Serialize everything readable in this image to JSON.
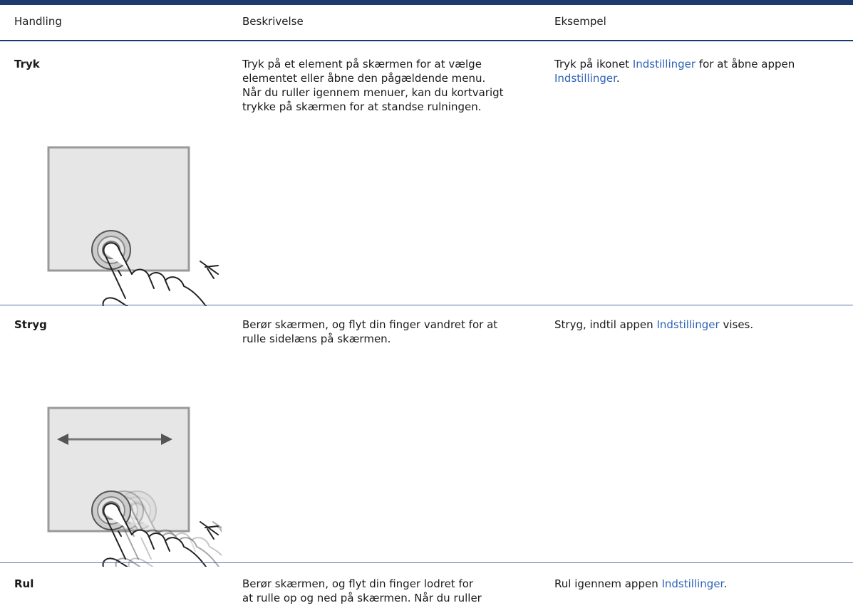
{
  "table": {
    "header": [
      "Handling",
      "Beskrivelse",
      "Eksempel"
    ],
    "rows": [
      {
        "action": "Tryk",
        "description": [
          "Tryk på et element på skærmen for at vælge",
          "elementet eller åbne den pågældende menu.",
          "Når du ruller igennem menuer, kan du kortvarigt",
          "trykke på skærmen for at standse rulningen."
        ],
        "example": [
          [
            {
              "text": "Tryk på ikonet ",
              "link": false
            },
            {
              "text": "Indstillinger",
              "link": true
            },
            {
              "text": " for at åbne appen",
              "link": false
            }
          ],
          [
            {
              "text": "Indstillinger",
              "link": true
            },
            {
              "text": ".",
              "link": false
            }
          ]
        ]
      },
      {
        "action": "Stryg",
        "description": [
          "Berør skærmen, og flyt din finger vandret for at",
          "rulle sidelæns på skærmen."
        ],
        "example": [
          [
            {
              "text": "Stryg, indtil appen ",
              "link": false
            },
            {
              "text": "Indstillinger",
              "link": true
            },
            {
              "text": " vises.",
              "link": false
            }
          ]
        ]
      },
      {
        "action": "Rul",
        "description": [
          "Berør skærmen, og flyt din finger lodret for",
          "at rulle op og ned på skærmen. Når du ruller"
        ],
        "example": [
          [
            {
              "text": "Rul igennem appen ",
              "link": false
            },
            {
              "text": "Indstillinger",
              "link": true
            },
            {
              "text": ".",
              "link": false
            }
          ]
        ]
      }
    ]
  }
}
